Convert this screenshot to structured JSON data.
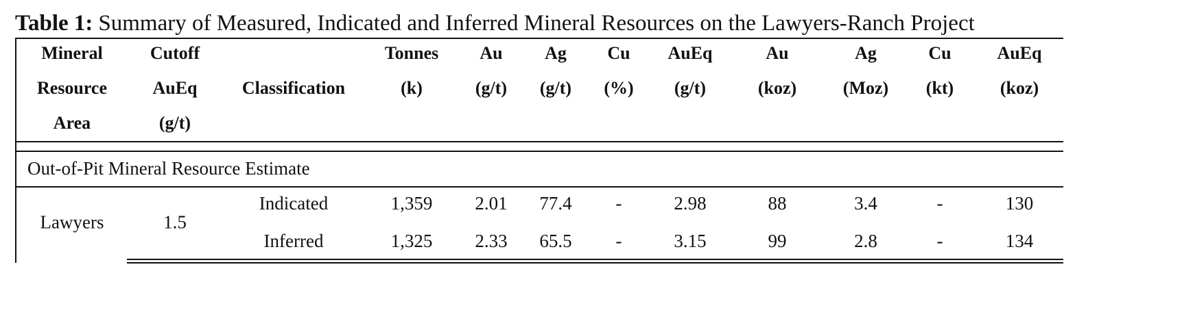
{
  "caption": {
    "label": "Table 1:",
    "text": "Summary of Measured, Indicated and Inferred Mineral Resources on the Lawyers-Ranch Project"
  },
  "table": {
    "header": [
      [
        "Mineral",
        "Resource",
        "Area"
      ],
      [
        "Cutoff",
        "AuEq",
        "(g/t)"
      ],
      [
        "Classification"
      ],
      [
        "Tonnes",
        "(k)"
      ],
      [
        "Au",
        "(g/t)"
      ],
      [
        "Ag",
        "(g/t)"
      ],
      [
        "Cu",
        "(%)"
      ],
      [
        "AuEq",
        "(g/t)"
      ],
      [
        "Au",
        "(koz)"
      ],
      [
        "Ag",
        "(Moz)"
      ],
      [
        "Cu",
        "(kt)"
      ],
      [
        "AuEq",
        "(koz)"
      ]
    ],
    "section": "Out-of-Pit Mineral Resource Estimate",
    "groups": [
      {
        "area": "Lawyers",
        "cutoff": "1.5",
        "rows": [
          [
            "Indicated",
            "1,359",
            "2.01",
            "77.4",
            "-",
            "2.98",
            "88",
            "3.4",
            "-",
            "130"
          ],
          [
            "Inferred",
            "1,325",
            "2.33",
            "65.5",
            "-",
            "3.15",
            "99",
            "2.8",
            "-",
            "134"
          ]
        ]
      }
    ]
  }
}
